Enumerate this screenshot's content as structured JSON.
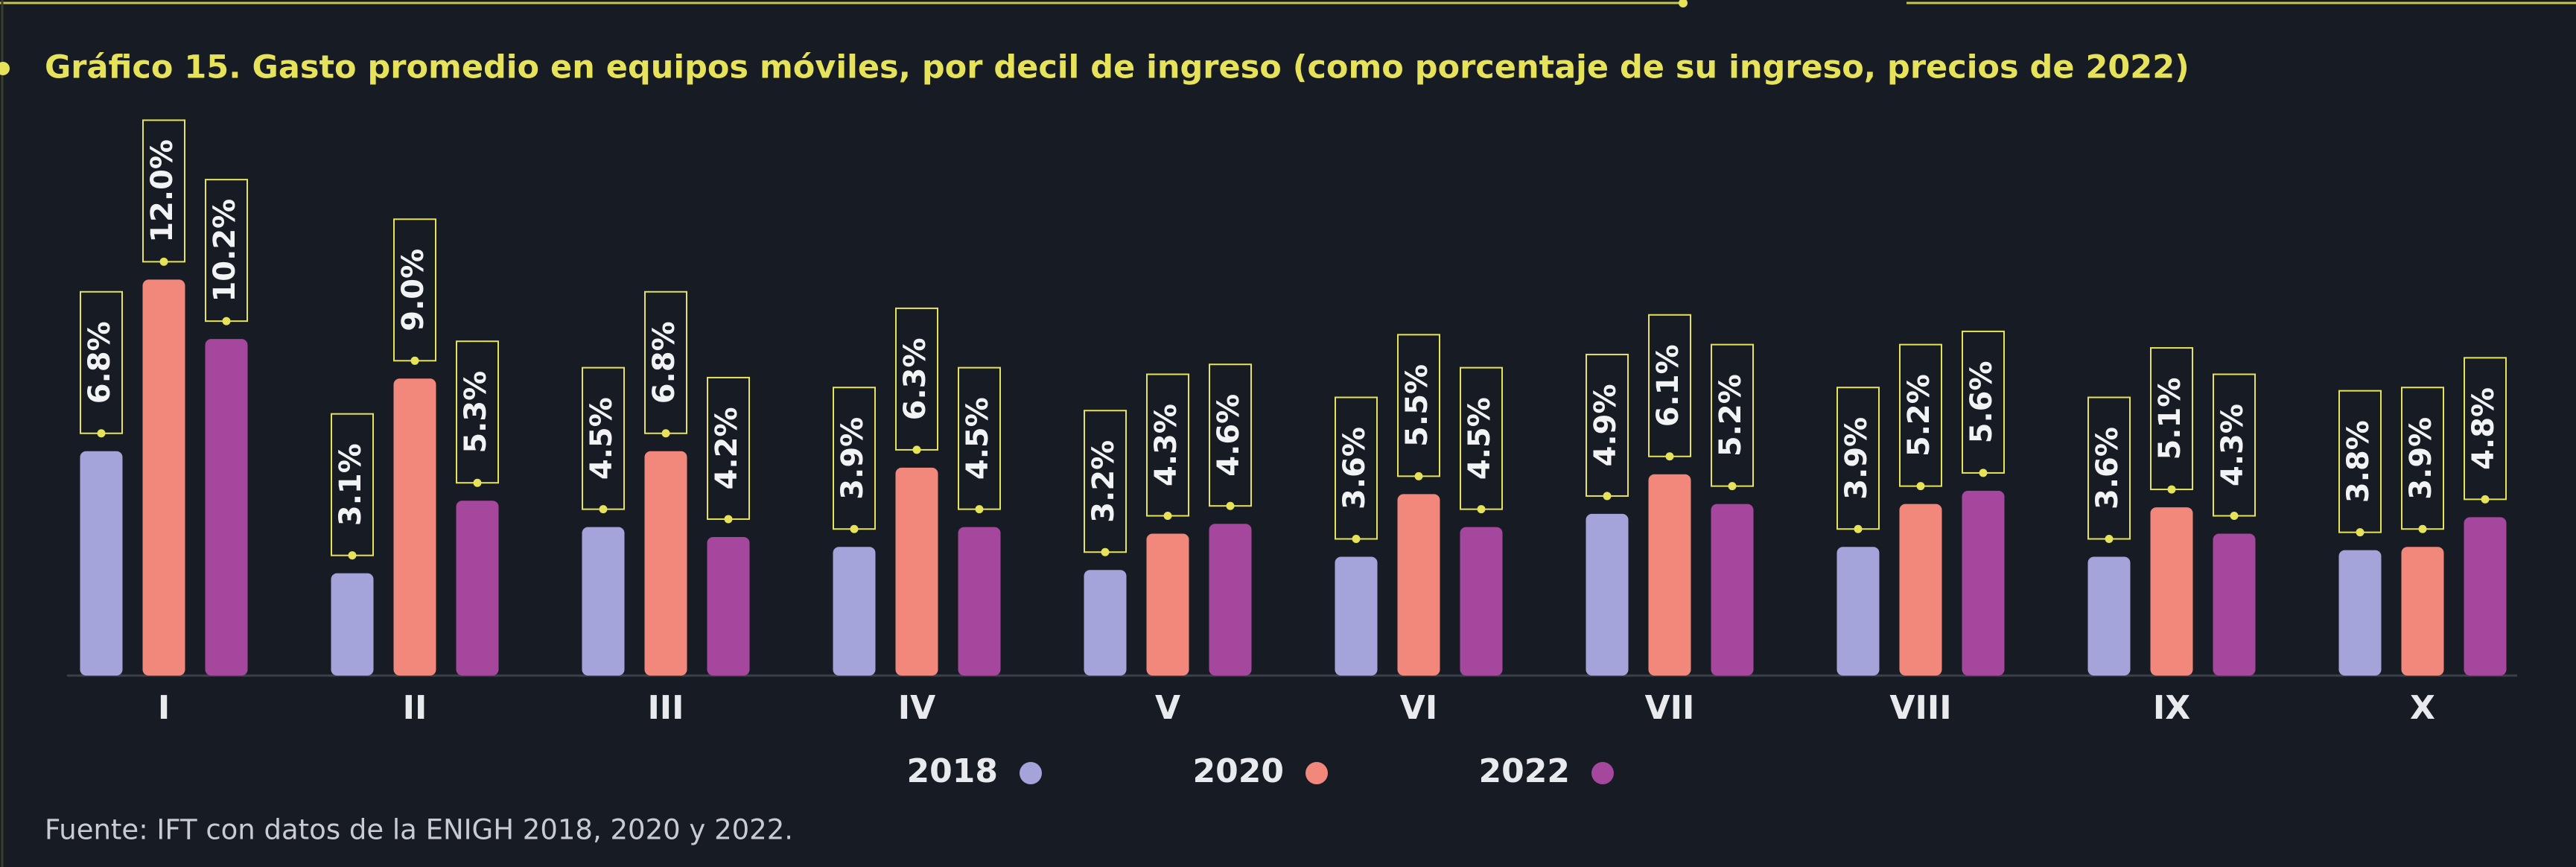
{
  "chart_data": {
    "type": "bar",
    "title": "Gráfico 15. Gasto promedio en equipos móviles, por decil de ingreso (como porcentaje de su ingreso, precios de 2022)",
    "source": "Fuente: IFT con datos de la ENIGH 2018, 2020 y 2022.",
    "categories": [
      "I",
      "II",
      "III",
      "IV",
      "V",
      "VI",
      "VII",
      "VIII",
      "IX",
      "X"
    ],
    "series": [
      {
        "name": "2018",
        "color": "#a4a4da",
        "values": [
          6.8,
          3.1,
          4.5,
          3.9,
          3.2,
          3.6,
          4.9,
          3.9,
          3.6,
          3.8
        ],
        "value_labels": [
          "6.8%",
          "3.1%",
          "4.5%",
          "3.9%",
          "3.2%",
          "3.6%",
          "4.9%",
          "3.9%",
          "3.6%",
          "3.8%"
        ]
      },
      {
        "name": "2020",
        "color": "#f2887b",
        "values": [
          12.0,
          9.0,
          6.8,
          6.3,
          4.3,
          5.5,
          6.1,
          5.2,
          5.1,
          3.9
        ],
        "value_labels": [
          "12.0%",
          "9.0%",
          "6.8%",
          "6.3%",
          "4.3%",
          "5.5%",
          "6.1%",
          "5.2%",
          "5.1%",
          "3.9%"
        ]
      },
      {
        "name": "2022",
        "color": "#a4479d",
        "values": [
          10.2,
          5.3,
          4.2,
          4.5,
          4.6,
          4.5,
          5.2,
          5.6,
          4.3,
          4.8
        ],
        "value_labels": [
          "10.2%",
          "5.3%",
          "4.2%",
          "4.5%",
          "4.6%",
          "4.5%",
          "5.2%",
          "5.6%",
          "4.3%",
          "4.8%"
        ]
      }
    ],
    "label_color": "#e6e35a"
  }
}
